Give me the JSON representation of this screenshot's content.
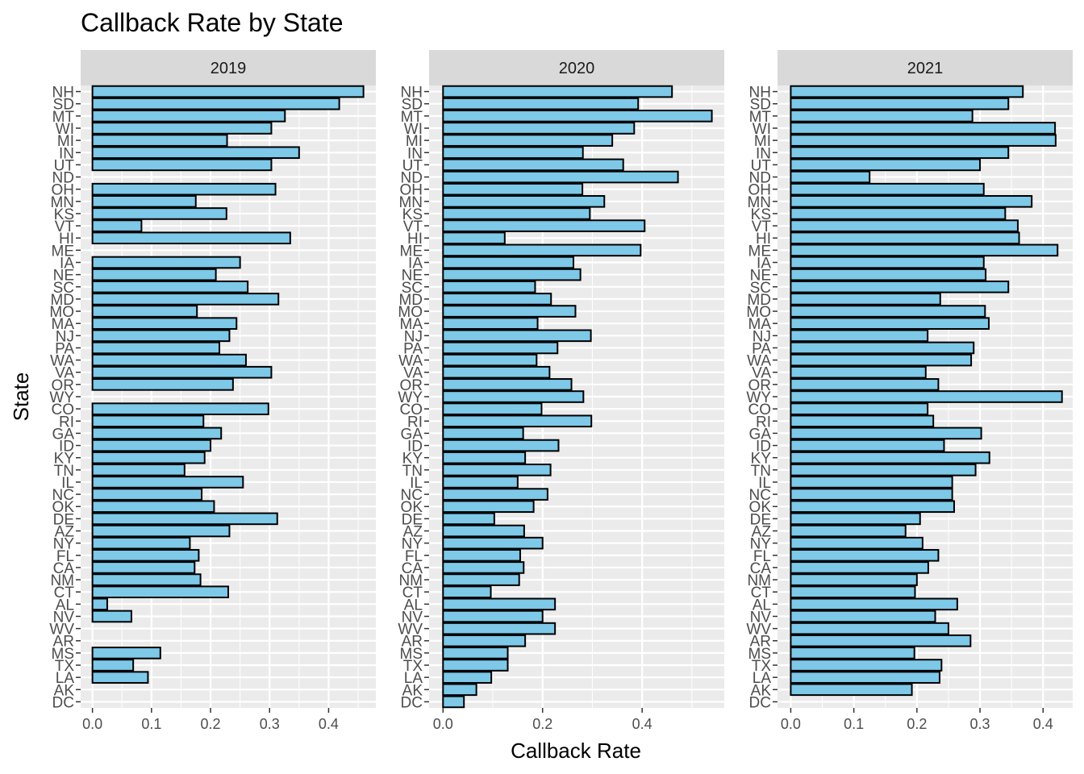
{
  "chart_data": {
    "type": "bar",
    "orientation": "horizontal",
    "title": "Callback Rate by State",
    "xlabel": "Callback Rate",
    "ylabel": "State",
    "grid": true,
    "bar_fill": "#7ec8e8",
    "bar_stroke": "#000000",
    "panel_bg": "#ebebeb",
    "strip_bg": "#d9d9d9",
    "grid_color": "#ffffff",
    "categories": [
      "NH",
      "SD",
      "MT",
      "WI",
      "MI",
      "IN",
      "UT",
      "ND",
      "OH",
      "MN",
      "KS",
      "VT",
      "HI",
      "ME",
      "IA",
      "NE",
      "SC",
      "MD",
      "MO",
      "MA",
      "NJ",
      "PA",
      "WA",
      "VA",
      "OR",
      "WY",
      "CO",
      "RI",
      "GA",
      "ID",
      "KY",
      "TN",
      "IL",
      "NC",
      "OK",
      "DE",
      "AZ",
      "NY",
      "FL",
      "CA",
      "NM",
      "CT",
      "AL",
      "NV",
      "WV",
      "AR",
      "MS",
      "TX",
      "LA",
      "AK",
      "DC"
    ],
    "panels": [
      {
        "label": "2019",
        "xlim": [
          -0.02,
          0.48
        ],
        "xticks": [
          0.0,
          0.1,
          0.2,
          0.3,
          0.4
        ],
        "xtick_labels": [
          "0.0",
          "0.1",
          "0.2",
          "0.3",
          "0.4"
        ],
        "values": [
          0.459,
          0.418,
          0.326,
          0.303,
          0.228,
          0.35,
          0.303,
          null,
          0.31,
          0.175,
          0.227,
          0.083,
          0.335,
          0.0,
          0.25,
          0.209,
          0.263,
          0.315,
          0.177,
          0.244,
          0.232,
          0.215,
          0.26,
          0.303,
          0.238,
          0.0,
          0.298,
          0.188,
          0.218,
          0.2,
          0.19,
          0.156,
          0.255,
          0.185,
          0.206,
          0.313,
          0.232,
          0.165,
          0.18,
          0.173,
          0.183,
          0.23,
          0.025,
          0.066,
          0.0,
          0.0,
          0.115,
          0.069,
          0.094,
          null,
          null
        ]
      },
      {
        "label": "2020",
        "xlim": [
          -0.028,
          0.565
        ],
        "xticks": [
          0.0,
          0.2,
          0.4
        ],
        "xtick_labels": [
          "0.0",
          "0.2",
          "0.4"
        ],
        "values": [
          0.46,
          0.392,
          0.54,
          0.384,
          0.34,
          0.281,
          0.362,
          0.472,
          0.28,
          0.324,
          0.295,
          0.405,
          0.124,
          0.397,
          0.262,
          0.276,
          0.185,
          0.217,
          0.266,
          0.19,
          0.297,
          0.23,
          0.188,
          0.214,
          0.258,
          0.282,
          0.198,
          0.298,
          0.161,
          0.232,
          0.165,
          0.216,
          0.15,
          0.21,
          0.182,
          0.103,
          0.163,
          0.2,
          0.155,
          0.162,
          0.153,
          0.096,
          0.225,
          0.2,
          0.225,
          0.165,
          0.13,
          0.13,
          0.097,
          0.067,
          0.042
        ]
      },
      {
        "label": "2021",
        "xlim": [
          -0.021,
          0.447
        ],
        "xticks": [
          0.0,
          0.1,
          0.2,
          0.3,
          0.4
        ],
        "xtick_labels": [
          "0.0",
          "0.1",
          "0.2",
          "0.3",
          "0.4"
        ],
        "values": [
          0.368,
          0.345,
          0.288,
          0.419,
          0.42,
          0.345,
          0.3,
          0.125,
          0.306,
          0.382,
          0.34,
          0.36,
          0.362,
          0.423,
          0.306,
          0.309,
          0.345,
          0.237,
          0.308,
          0.314,
          0.217,
          0.29,
          0.286,
          0.214,
          0.234,
          0.43,
          0.217,
          0.226,
          0.302,
          0.243,
          0.315,
          0.293,
          0.256,
          0.256,
          0.259,
          0.205,
          0.182,
          0.209,
          0.234,
          0.218,
          0.2,
          0.197,
          0.264,
          0.229,
          0.25,
          0.285,
          0.196,
          0.239,
          0.236,
          0.192,
          null
        ]
      }
    ]
  }
}
